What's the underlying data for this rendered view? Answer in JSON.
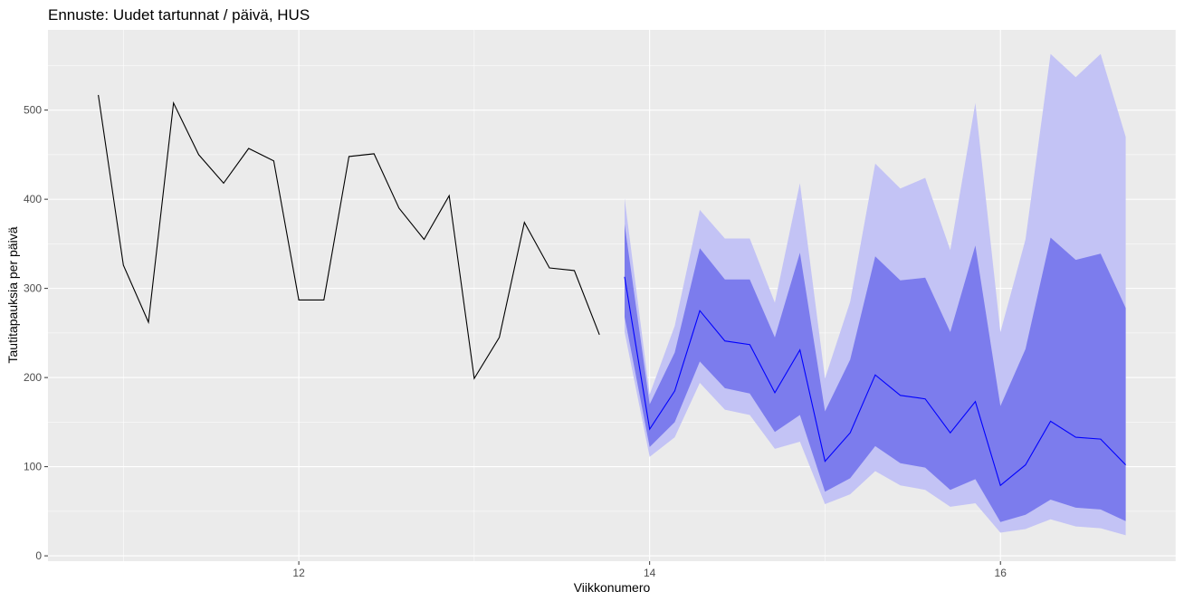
{
  "chart_data": {
    "type": "line",
    "title": "Ennuste: Uudet tartunnat / päivä, HUS",
    "xlabel": "Viikkonumero",
    "ylabel": "Tautitapauksia per päivä",
    "xlim": [
      10.57,
      17.0
    ],
    "ylim": [
      -6,
      590
    ],
    "x_ticks": [
      12,
      14,
      16
    ],
    "y_ticks": [
      0,
      100,
      200,
      300,
      400,
      500
    ],
    "grid": true,
    "colors": {
      "panel": "#EBEBEB",
      "grid": "#FFFFFF",
      "observed_line": "#000000",
      "forecast_line": "#0000FF",
      "band_outer": "#C3C3F5",
      "band_inner": "#7C7CED"
    },
    "observed": {
      "x": [
        10.857,
        11.0,
        11.143,
        11.286,
        11.429,
        11.571,
        11.714,
        11.857,
        12.0,
        12.143,
        12.286,
        12.429,
        12.571,
        12.714,
        12.857,
        13.0,
        13.143,
        13.286,
        13.429,
        13.571,
        13.714
      ],
      "y": [
        517,
        326,
        262,
        508,
        450,
        418,
        457,
        443,
        287,
        287,
        448,
        451,
        390,
        355,
        404,
        199,
        245,
        374,
        323,
        320,
        248
      ]
    },
    "forecast": {
      "x": [
        13.857,
        14.0,
        14.143,
        14.286,
        14.429,
        14.571,
        14.714,
        14.857,
        15.0,
        15.143,
        15.286,
        15.429,
        15.571,
        15.714,
        15.857,
        16.0,
        16.143,
        16.286,
        16.429,
        16.571,
        16.714
      ],
      "median": [
        313,
        142,
        185,
        275,
        241,
        237,
        183,
        231,
        106,
        138,
        203,
        180,
        176,
        138,
        173,
        79,
        102,
        151,
        133,
        131,
        102
      ],
      "inner_lower": [
        268,
        122,
        150,
        218,
        188,
        182,
        139,
        158,
        72,
        87,
        123,
        104,
        99,
        74,
        86,
        38,
        46,
        63,
        54,
        52,
        39
      ],
      "inner_upper": [
        372,
        170,
        228,
        345,
        310,
        310,
        245,
        340,
        162,
        220,
        336,
        309,
        312,
        251,
        348,
        168,
        232,
        357,
        332,
        339,
        278
      ],
      "outer_lower": [
        251,
        111,
        133,
        194,
        164,
        158,
        120,
        128,
        58,
        69,
        95,
        79,
        74,
        55,
        59,
        26,
        30,
        41,
        33,
        31,
        23
      ],
      "outer_upper": [
        401,
        181,
        258,
        388,
        356,
        356,
        284,
        418,
        199,
        285,
        440,
        412,
        424,
        343,
        508,
        251,
        355,
        563,
        537,
        563,
        470
      ]
    }
  }
}
